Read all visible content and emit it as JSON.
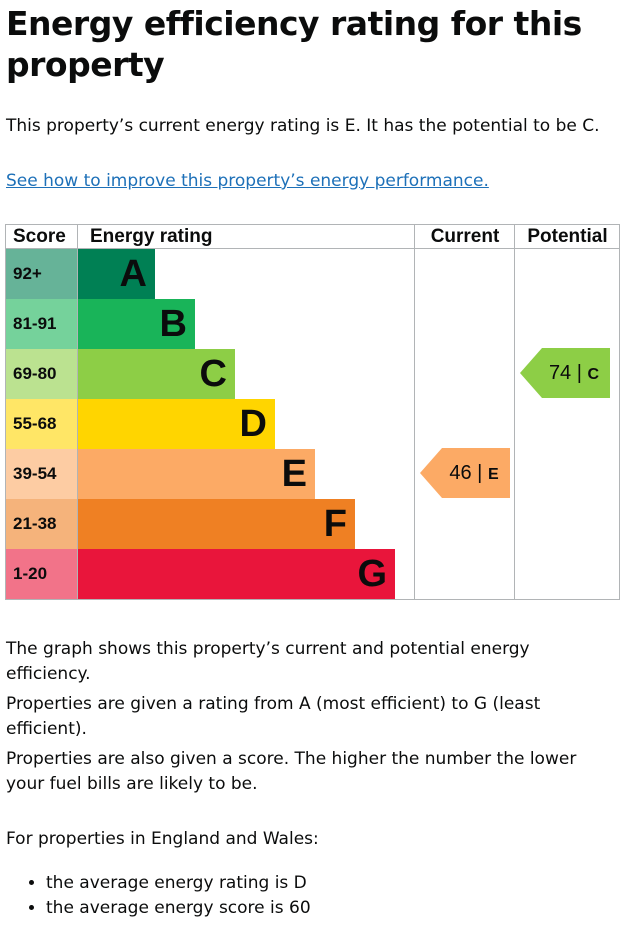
{
  "title": "Energy efficiency rating for this property",
  "lead": "This property’s current energy rating is E. It has the potential to be C.",
  "improve_link": "See how to improve this property’s energy performance.",
  "table": {
    "headers": {
      "score": "Score",
      "rating": "Energy rating",
      "current": "Current",
      "potential": "Potential"
    },
    "bands": [
      {
        "score": "92+",
        "letter": "A",
        "color": "#008054",
        "score_bg": "#66b398"
      },
      {
        "score": "81-91",
        "letter": "B",
        "color": "#19b459",
        "score_bg": "#75d29b"
      },
      {
        "score": "69-80",
        "letter": "C",
        "color": "#8dce46",
        "score_bg": "#bbe290"
      },
      {
        "score": "55-68",
        "letter": "D",
        "color": "#ffd500",
        "score_bg": "#ffe666"
      },
      {
        "score": "39-54",
        "letter": "E",
        "color": "#fcaa65",
        "score_bg": "#fdcca3"
      },
      {
        "score": "21-38",
        "letter": "F",
        "color": "#ef8023",
        "score_bg": "#f5b37b"
      },
      {
        "score": "1-20",
        "letter": "G",
        "color": "#e9153b",
        "score_bg": "#f27389"
      }
    ],
    "current": {
      "value": "46 |",
      "letter": "E",
      "color": "#fcaa65"
    },
    "potential": {
      "value": "74 |",
      "letter": "C",
      "color": "#8dce46"
    }
  },
  "paragraphs": [
    "The graph shows this property’s current and potential energy efficiency.",
    "Properties are given a rating from A (most efficient) to G (least efficient).",
    "Properties are also given a score. The higher the number the lower your fuel bills are likely to be.",
    "For properties in England and Wales:"
  ],
  "facts": [
    "the average energy rating is D",
    "the average energy score is 60"
  ]
}
